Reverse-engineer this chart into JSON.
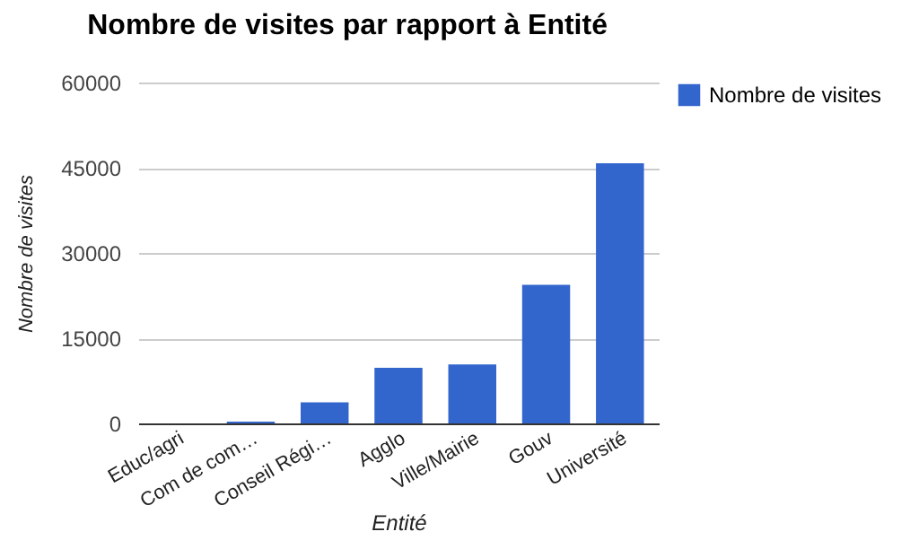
{
  "chart_data": {
    "type": "bar",
    "title": "Nombre de visites par rapport à Entité",
    "xlabel": "Entité",
    "ylabel": "Nombre de visites",
    "categories": [
      "Educ/agri",
      "Com de com…",
      "Conseil Régi…",
      "Agglo",
      "Ville/Mairie",
      "Gouv",
      "Université"
    ],
    "series": [
      {
        "name": "Nombre de visites",
        "color": "#3366cc",
        "values": [
          0,
          300,
          3700,
          9800,
          10400,
          24400,
          45800
        ]
      }
    ],
    "ylim": [
      0,
      60000
    ],
    "yticks": [
      0,
      15000,
      30000,
      45000,
      60000
    ],
    "grid": "y",
    "legend": "top right"
  }
}
